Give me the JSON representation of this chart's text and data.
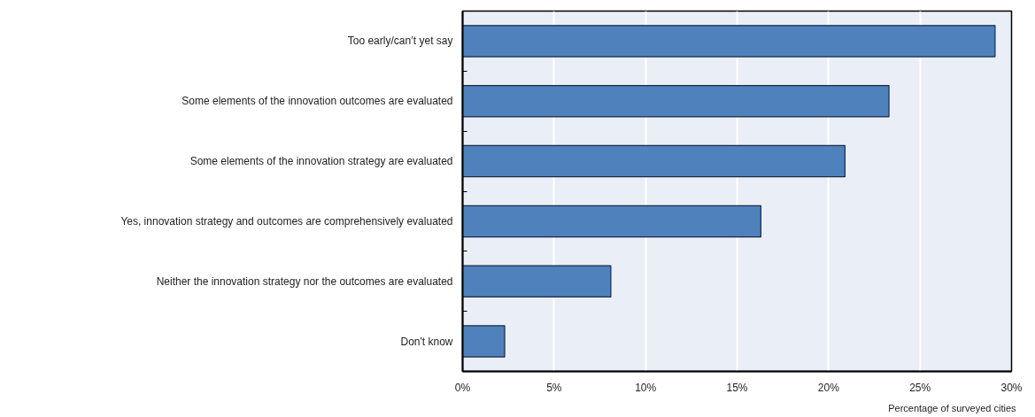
{
  "chart_data": {
    "type": "bar",
    "orientation": "horizontal",
    "categories": [
      "Too early/can’t yet say",
      "Some elements of the innovation outcomes are evaluated",
      "Some elements of the innovation strategy are evaluated",
      "Yes, innovation strategy and outcomes are comprehensively evaluated",
      "Neither the innovation strategy nor the outcomes are evaluated",
      "Don't know"
    ],
    "values": [
      29.1,
      23.3,
      20.9,
      16.3,
      8.1,
      2.3
    ],
    "color": "#4f81bd",
    "xlim": [
      0,
      30
    ],
    "xticks": [
      {
        "value": 0,
        "label": "0%"
      },
      {
        "value": 5,
        "label": "5%"
      },
      {
        "value": 10,
        "label": "10%"
      },
      {
        "value": 15,
        "label": "15%"
      },
      {
        "value": 20,
        "label": "20%"
      },
      {
        "value": 25,
        "label": "25%"
      },
      {
        "value": 30,
        "label": "30%"
      }
    ],
    "xlabel": "Percentage of surveyed cities",
    "grid": "x"
  }
}
